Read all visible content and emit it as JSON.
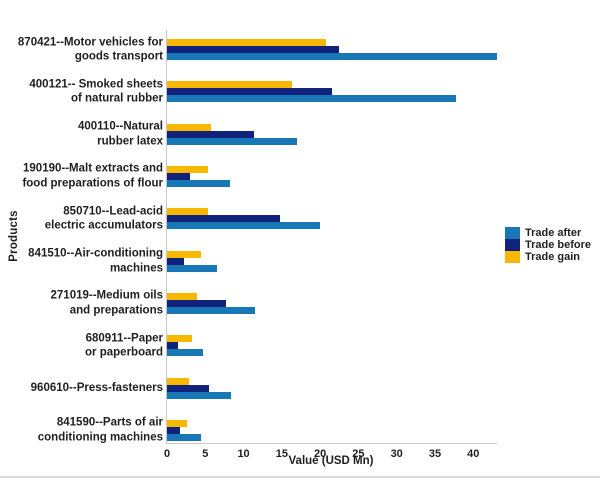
{
  "chart_data": {
    "type": "bar",
    "orientation": "horizontal",
    "title": "",
    "xlabel": "Value (USD Mn)",
    "ylabel": "Products",
    "xlim": [
      0,
      43.1
    ],
    "xticks": [
      0,
      5,
      10,
      15,
      20,
      25,
      30,
      35,
      40
    ],
    "grid": false,
    "legend_position": "center-right",
    "legend_order": [
      "Trade after",
      "Trade before",
      "Trade gain"
    ],
    "bar_order_top_to_bottom": [
      "Trade gain",
      "Trade before",
      "Trade after"
    ],
    "categories": [
      "870421--Motor vehicles for\ngoods transport",
      "400121-- Smoked sheets\nof natural rubber",
      "400110--Natural\nrubber latex",
      "190190--Malt extracts and\nfood preparations of flour",
      "850710--Lead-acid\nelectric accumulators",
      "841510--Air-conditioning\nmachines",
      "271019--Medium oils\nand preparations",
      "680911--Paper\nor paperboard",
      "960610--Press-fasteners",
      "841590--Parts of air\nconditioning machines"
    ],
    "series": [
      {
        "name": "Trade gain",
        "color": "#F9B800",
        "values": [
          20.8,
          16.3,
          5.8,
          5.3,
          5.3,
          4.4,
          3.9,
          3.3,
          2.9,
          2.6
        ]
      },
      {
        "name": "Trade before",
        "color": "#10227B",
        "values": [
          22.4,
          21.5,
          11.3,
          3.0,
          14.7,
          2.2,
          7.7,
          1.4,
          5.5,
          1.7
        ]
      },
      {
        "name": "Trade after",
        "color": "#1878B5",
        "values": [
          43.1,
          37.8,
          17.0,
          8.2,
          20.0,
          6.5,
          11.5,
          4.7,
          8.4,
          4.5
        ]
      }
    ],
    "colors": {
      "trade_after": "#1878B5",
      "trade_before": "#10227B",
      "trade_gain": "#F9B800",
      "axis_line": "#C9C9C9",
      "text": "#1F1F1F"
    }
  }
}
